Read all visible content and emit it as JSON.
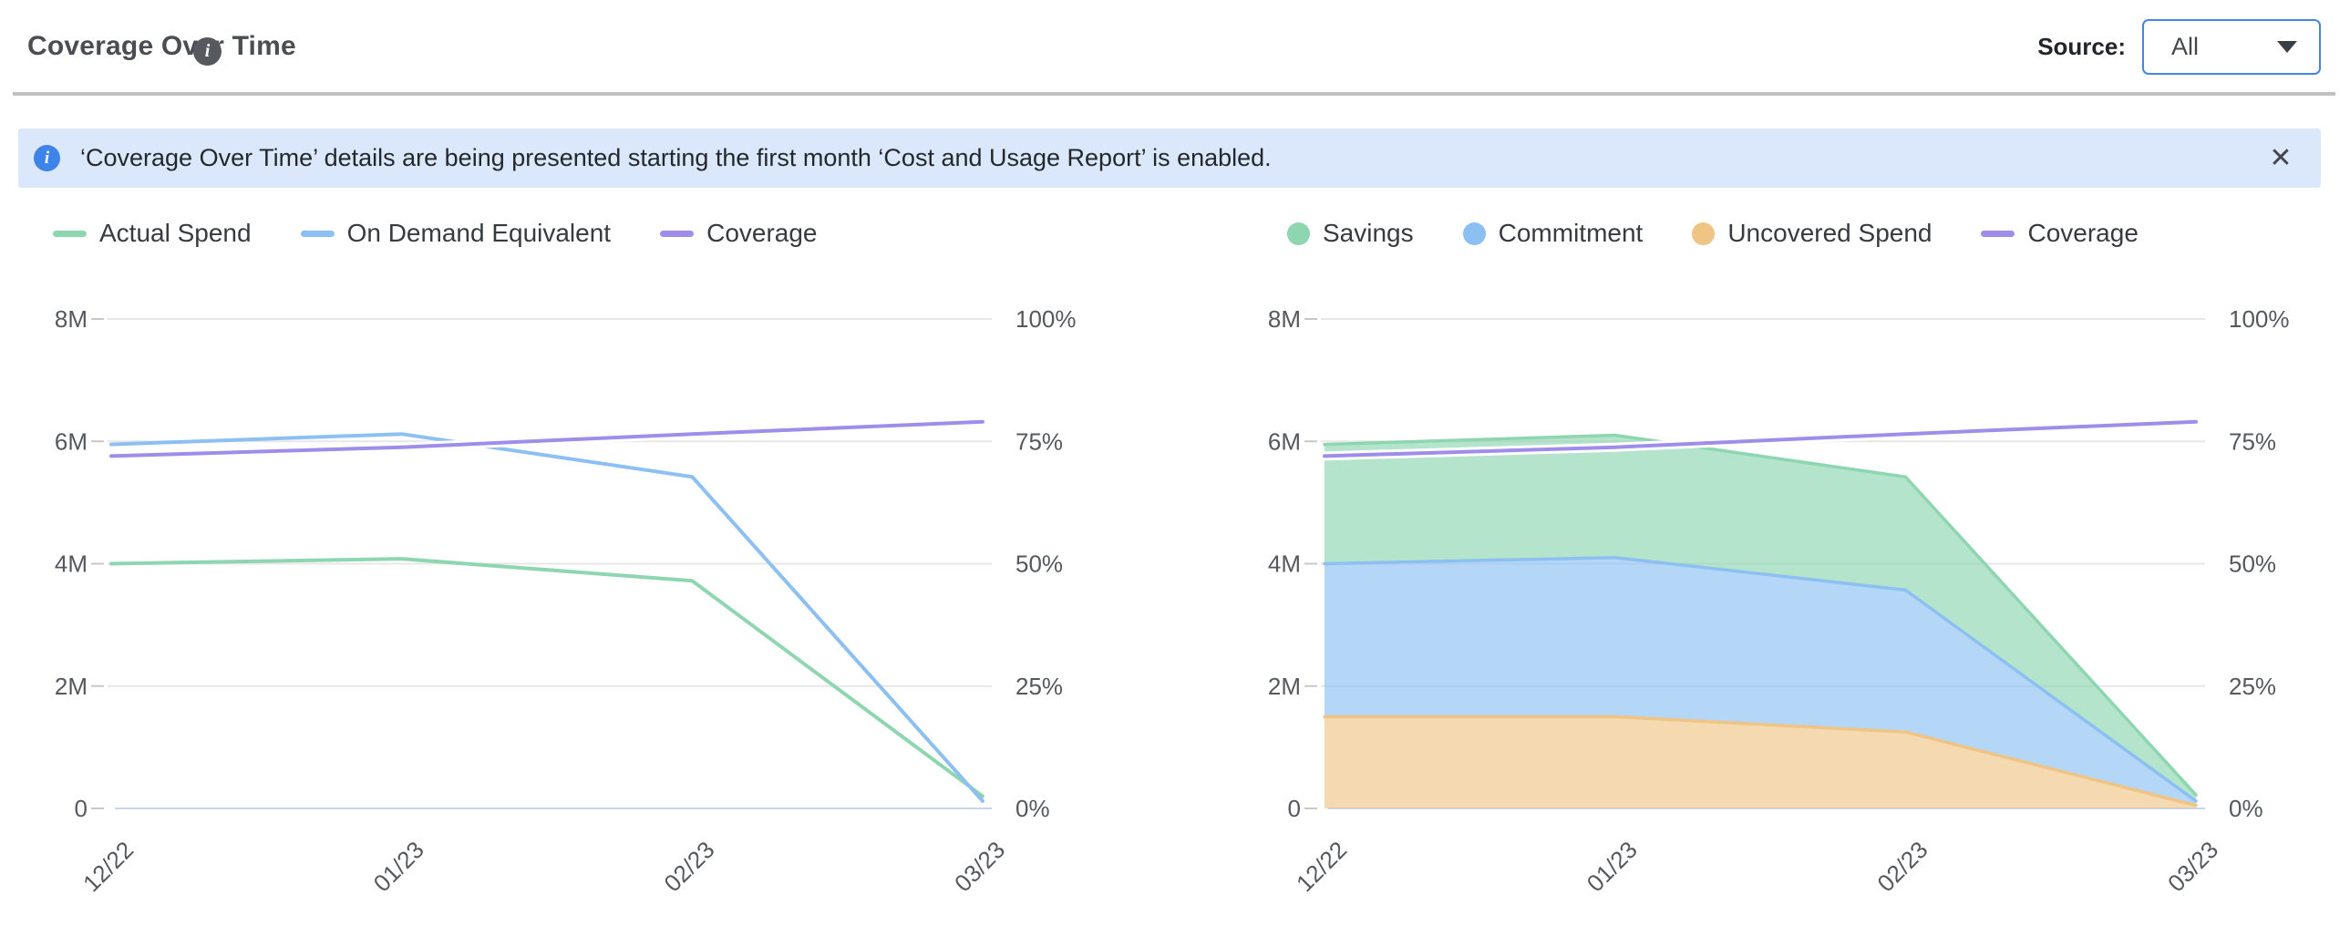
{
  "header": {
    "title": "Coverage Over Time",
    "info_glyph": "i",
    "source_label": "Source:",
    "source_value": "All"
  },
  "banner": {
    "info_glyph": "i",
    "text": "‘Coverage Over Time’ details are being presented starting the first month ‘Cost and Usage Report’ is enabled.",
    "close_glyph": "✕"
  },
  "colors": {
    "accent": "#4087e8",
    "banner_bg": "#dbe8fb",
    "banner_icon": "#3e83ea",
    "info_icon": "#56595e",
    "divider": "#c1c1c1",
    "grid": "#e7e7e9",
    "zero_line": "#c9d4ee",
    "halo": "#ffffff",
    "text_title": "#4a4e53",
    "text_body": "#24282d",
    "text_axis": "#55585d",
    "text_legend": "#373b40"
  },
  "chart_data": [
    {
      "type": "line",
      "title": "",
      "categories": [
        "12/22",
        "01/23",
        "02/23",
        "03/23"
      ],
      "series": [
        {
          "name": "Actual Spend",
          "color": "#8ed6b0",
          "axis": "left",
          "values_millions": [
            4.0,
            4.08,
            3.72,
            0.2
          ]
        },
        {
          "name": "On Demand Equivalent",
          "color": "#8cc0f2",
          "axis": "left",
          "values_millions": [
            5.95,
            6.12,
            5.42,
            0.12
          ]
        },
        {
          "name": "Coverage",
          "color": "#9e8deb",
          "axis": "right",
          "values_percent": [
            72,
            73.8,
            76.5,
            79
          ]
        }
      ],
      "left_axis": {
        "ticks": [
          "0",
          "2M",
          "4M",
          "6M",
          "8M"
        ],
        "min": 0,
        "max_millions": 8
      },
      "right_axis": {
        "ticks": [
          "0%",
          "25%",
          "50%",
          "75%",
          "100%"
        ],
        "min": 0,
        "max_percent": 100
      },
      "grid": true,
      "legend_position": "top",
      "x_label_rotation": -45
    },
    {
      "type": "area",
      "stacked": true,
      "title": "",
      "categories": [
        "12/22",
        "01/23",
        "02/23",
        "03/23"
      ],
      "stack_order": [
        "Uncovered Spend",
        "Commitment",
        "Savings"
      ],
      "series": [
        {
          "name": "Savings",
          "color": "#8ed6b0",
          "axis": "left",
          "values_millions": [
            1.95,
            2.0,
            1.85,
            0.1
          ]
        },
        {
          "name": "Commitment",
          "color": "#8cc0f2",
          "axis": "left",
          "values_millions": [
            2.5,
            2.6,
            2.32,
            0.07
          ]
        },
        {
          "name": "Uncovered Spend",
          "color": "#f0c485",
          "axis": "left",
          "values_millions": [
            1.5,
            1.5,
            1.25,
            0.05
          ]
        },
        {
          "name": "Coverage",
          "color": "#9e8deb",
          "axis": "right",
          "type": "line",
          "values_percent": [
            72,
            73.8,
            76.5,
            79
          ]
        }
      ],
      "left_axis": {
        "ticks": [
          "0",
          "2M",
          "4M",
          "6M",
          "8M"
        ],
        "min": 0,
        "max_millions": 8
      },
      "right_axis": {
        "ticks": [
          "0%",
          "25%",
          "50%",
          "75%",
          "100%"
        ],
        "min": 0,
        "max_percent": 100
      },
      "grid": true,
      "legend_position": "top",
      "x_label_rotation": -45
    }
  ]
}
